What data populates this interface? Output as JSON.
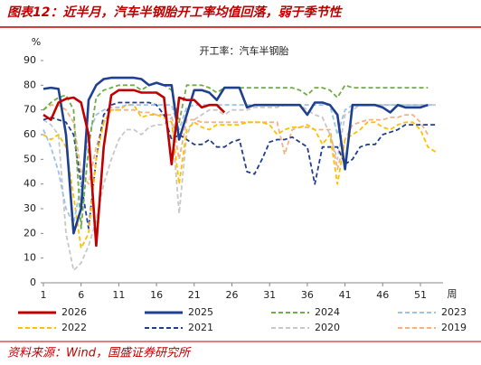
{
  "chart_data": {
    "type": "line",
    "title": "图表12：近半月，汽车半钢胎开工率均值回落，弱于季节性",
    "subtitle": "开工率：汽车半钢胎",
    "y_unit": "%",
    "x_unit": "周",
    "source": "资料来源：Wind，国盛证券研究所",
    "xlim": [
      1,
      54
    ],
    "xticks": [
      1,
      6,
      11,
      16,
      21,
      26,
      31,
      36,
      41,
      46,
      51
    ],
    "ylim": [
      0,
      90
    ],
    "yticks": [
      0,
      10,
      20,
      30,
      40,
      50,
      60,
      70,
      80,
      90
    ],
    "x": [
      1,
      2,
      3,
      4,
      5,
      6,
      7,
      8,
      9,
      10,
      11,
      12,
      13,
      14,
      15,
      16,
      17,
      18,
      19,
      20,
      21,
      22,
      23,
      24,
      25,
      26,
      27,
      28,
      29,
      30,
      31,
      32,
      33,
      34,
      35,
      36,
      37,
      38,
      39,
      40,
      41,
      42,
      43,
      44,
      45,
      46,
      47,
      48,
      49,
      50,
      51,
      52,
      53
    ],
    "series": [
      {
        "name": "2026",
        "color": "#c00000",
        "dashed": false,
        "values": [
          68,
          66,
          73,
          74.5,
          75,
          73,
          60,
          15,
          55,
          76,
          78,
          78,
          78,
          77,
          77,
          77,
          75,
          48,
          75,
          74,
          74,
          71,
          72,
          72,
          69,
          null,
          null,
          null,
          null,
          null,
          null,
          null,
          null,
          null,
          null,
          null,
          null,
          null,
          null,
          null,
          null,
          null,
          null,
          null,
          null,
          null,
          null,
          null,
          null,
          null,
          null,
          null,
          null
        ]
      },
      {
        "name": "2025",
        "color": "#1f3f8f",
        "dashed": false,
        "values": [
          78.5,
          79,
          78.5,
          60,
          20,
          30,
          74,
          80,
          82.5,
          83,
          83,
          83,
          83,
          82.5,
          80,
          81,
          80,
          80,
          58,
          68,
          78,
          78,
          77,
          74,
          79,
          79,
          79,
          71,
          72,
          72,
          72,
          72,
          72,
          72,
          72,
          68,
          73,
          73,
          72,
          68,
          46,
          72,
          72,
          72,
          72,
          71,
          69,
          72,
          71,
          71,
          71,
          72,
          null
        ]
      },
      {
        "name": "2024",
        "color": "#70ad47",
        "dashed": true,
        "values": [
          70,
          73,
          75,
          76,
          70,
          22,
          55,
          75,
          78,
          79,
          80,
          80,
          80,
          78,
          80,
          81,
          80,
          78,
          65,
          80,
          80,
          80,
          79,
          77,
          79,
          79,
          79,
          79,
          79,
          79,
          79,
          79,
          79,
          79,
          78,
          76,
          79,
          79,
          78,
          75,
          80,
          79,
          79,
          79,
          79,
          79,
          79,
          79,
          79,
          79,
          79,
          79,
          null
        ]
      },
      {
        "name": "2023",
        "color": "#9dc3e6",
        "dashed": true,
        "values": [
          62,
          55,
          45,
          30,
          24,
          40,
          60,
          68,
          70,
          71,
          71,
          72,
          72,
          72,
          72,
          72,
          72,
          72,
          62,
          71,
          72,
          72,
          72,
          72,
          72,
          72,
          72,
          72,
          72,
          72,
          72,
          72,
          72,
          72,
          72,
          72,
          72,
          72,
          72,
          60,
          70,
          72,
          72,
          72,
          72,
          72,
          72,
          72,
          72,
          72,
          72,
          72,
          72
        ]
      },
      {
        "name": "2022",
        "color": "#ffc000",
        "dashed": true,
        "values": [
          60,
          58,
          60,
          55,
          35,
          14,
          20,
          50,
          65,
          70,
          70,
          72,
          72,
          67,
          68,
          68,
          67,
          65,
          40,
          62,
          65,
          63,
          62,
          64,
          64,
          64,
          64,
          65,
          65,
          65,
          64,
          60,
          62,
          63,
          63,
          64,
          62,
          56,
          60,
          40,
          58,
          60,
          62,
          65,
          65,
          63,
          62,
          64,
          65,
          65,
          62,
          55,
          53
        ]
      },
      {
        "name": "2021",
        "color": "#203f8f",
        "dashed": true,
        "values": [
          66,
          67,
          66,
          65,
          60,
          40,
          22,
          50,
          68,
          72,
          73,
          73,
          73,
          73,
          73,
          72,
          68,
          58,
          60,
          58,
          56,
          56,
          58,
          55,
          55,
          57,
          58,
          45,
          44,
          50,
          57,
          58,
          58,
          59,
          57,
          55,
          40,
          55,
          55,
          55,
          48,
          50,
          55,
          56,
          56,
          60,
          61,
          62,
          64,
          64,
          64,
          64,
          64
        ]
      },
      {
        "name": "2020",
        "color": "#c8c8c8",
        "dashed": true,
        "values": [
          66,
          64,
          60,
          20,
          5,
          8,
          15,
          25,
          40,
          50,
          58,
          62,
          62,
          60,
          63,
          64,
          64,
          67,
          28,
          60,
          66,
          68,
          70,
          70,
          68,
          70,
          70,
          70,
          71,
          71,
          71,
          71,
          72,
          72,
          72,
          70,
          68,
          67,
          60,
          50,
          68,
          70,
          72,
          72,
          72,
          72,
          72,
          72,
          72,
          72,
          72,
          72,
          72
        ]
      },
      {
        "name": "2019",
        "color": "#f4b183",
        "dashed": true,
        "values": [
          70,
          72,
          72,
          70,
          65,
          45,
          40,
          55,
          65,
          70,
          70,
          70,
          70,
          69,
          69,
          68,
          68,
          68,
          50,
          66,
          66,
          65,
          65,
          65,
          65,
          65,
          65,
          65,
          65,
          65,
          65,
          65,
          52,
          62,
          63,
          63,
          62,
          62,
          62,
          46,
          58,
          64,
          65,
          66,
          66,
          66,
          67,
          67,
          68,
          68,
          65,
          60,
          null
        ]
      }
    ]
  }
}
